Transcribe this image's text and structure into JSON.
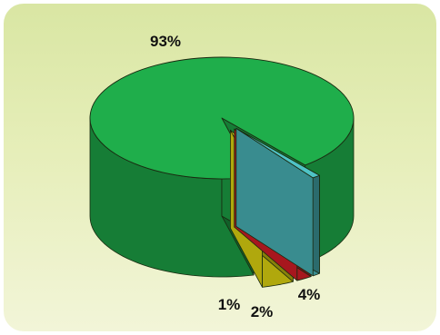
{
  "chart_data": {
    "type": "pie",
    "title": "",
    "slices": [
      {
        "label": "93%",
        "value": 93,
        "color": "#1fae4b"
      },
      {
        "label": "1%",
        "value": 1,
        "color": "#4fc3c6"
      },
      {
        "label": "2%",
        "value": 2,
        "color": "#e8202a"
      },
      {
        "label": "4%",
        "value": 4,
        "color": "#f5ea12"
      }
    ],
    "style": "3d-exploded"
  }
}
